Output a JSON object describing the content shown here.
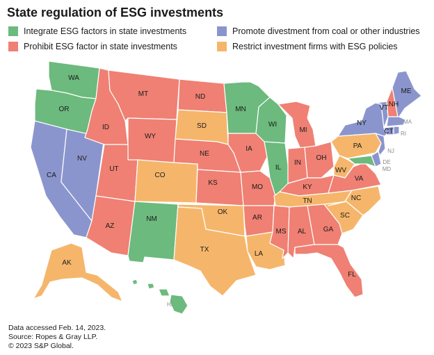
{
  "title": "State regulation of ESG investments",
  "colors": {
    "integrate": "#6cba7d",
    "prohibit": "#ef8073",
    "promote": "#8b95cd",
    "restrict": "#f5b66b"
  },
  "legend": [
    {
      "key": "integrate",
      "label": "Integrate ESG factors in state investments"
    },
    {
      "key": "prohibit",
      "label": "Prohibit ESG factor in state investments"
    },
    {
      "key": "promote",
      "label": "Promote divestment from coal or other industries"
    },
    {
      "key": "restrict",
      "label": "Restrict investment firms with ESG policies"
    }
  ],
  "states": {
    "WA": {
      "label": "WA",
      "category": "integrate"
    },
    "OR": {
      "label": "OR",
      "category": "integrate"
    },
    "CA": {
      "label": "CA",
      "category": "promote"
    },
    "NV": {
      "label": "NV",
      "category": "promote"
    },
    "ID": {
      "label": "ID",
      "category": "prohibit"
    },
    "MT": {
      "label": "MT",
      "category": "prohibit"
    },
    "WY": {
      "label": "WY",
      "category": "prohibit"
    },
    "UT": {
      "label": "UT",
      "category": "prohibit"
    },
    "AZ": {
      "label": "AZ",
      "category": "prohibit"
    },
    "CO": {
      "label": "CO",
      "category": "restrict"
    },
    "NM": {
      "label": "NM",
      "category": "integrate"
    },
    "ND": {
      "label": "ND",
      "category": "prohibit"
    },
    "SD": {
      "label": "SD",
      "category": "restrict"
    },
    "NE": {
      "label": "NE",
      "category": "prohibit"
    },
    "KS": {
      "label": "KS",
      "category": "prohibit"
    },
    "OK": {
      "label": "OK",
      "category": "restrict"
    },
    "TX": {
      "label": "TX",
      "category": "restrict"
    },
    "MN": {
      "label": "MN",
      "category": "integrate"
    },
    "IA": {
      "label": "IA",
      "category": "prohibit"
    },
    "MO": {
      "label": "MO",
      "category": "prohibit"
    },
    "AR": {
      "label": "AR",
      "category": "prohibit"
    },
    "LA": {
      "label": "LA",
      "category": "restrict"
    },
    "WI": {
      "label": "WI",
      "category": "integrate"
    },
    "IL": {
      "label": "IL",
      "category": "integrate"
    },
    "MI": {
      "label": "MI",
      "category": "prohibit"
    },
    "IN": {
      "label": "IN",
      "category": "prohibit"
    },
    "OH": {
      "label": "OH",
      "category": "prohibit"
    },
    "KY": {
      "label": "KY",
      "category": "prohibit"
    },
    "TN": {
      "label": "TN",
      "category": "restrict"
    },
    "MS": {
      "label": "MS",
      "category": "prohibit"
    },
    "AL": {
      "label": "AL",
      "category": "prohibit"
    },
    "GA": {
      "label": "GA",
      "category": "prohibit"
    },
    "FL": {
      "label": "FL",
      "category": "prohibit"
    },
    "SC": {
      "label": "SC",
      "category": "restrict"
    },
    "NC": {
      "label": "NC",
      "category": "restrict"
    },
    "VA": {
      "label": "VA",
      "category": "prohibit"
    },
    "WV": {
      "label": "WV",
      "category": "restrict"
    },
    "PA": {
      "label": "PA",
      "category": "restrict"
    },
    "NY": {
      "label": "NY",
      "category": "promote"
    },
    "VT": {
      "label": "VT",
      "category": "promote"
    },
    "NH": {
      "label": "NH",
      "category": "prohibit"
    },
    "ME": {
      "label": "ME",
      "category": "promote"
    },
    "MA": {
      "label": "MA",
      "category": "promote"
    },
    "CT": {
      "label": "CT",
      "category": "promote"
    },
    "RI": {
      "label": "RI",
      "category": "promote"
    },
    "NJ": {
      "label": "NJ",
      "category": "promote"
    },
    "DE": {
      "label": "DE",
      "category": "promote"
    },
    "MD": {
      "label": "MD",
      "category": "integrate"
    },
    "AK": {
      "label": "AK",
      "category": "restrict"
    },
    "HI": {
      "label": "HI",
      "category": "integrate"
    }
  },
  "footer": {
    "line1": "Data accessed Feb. 14, 2023.",
    "line2": "Source: Ropes & Gray LLP.",
    "line3": "© 2023 S&P Global."
  }
}
